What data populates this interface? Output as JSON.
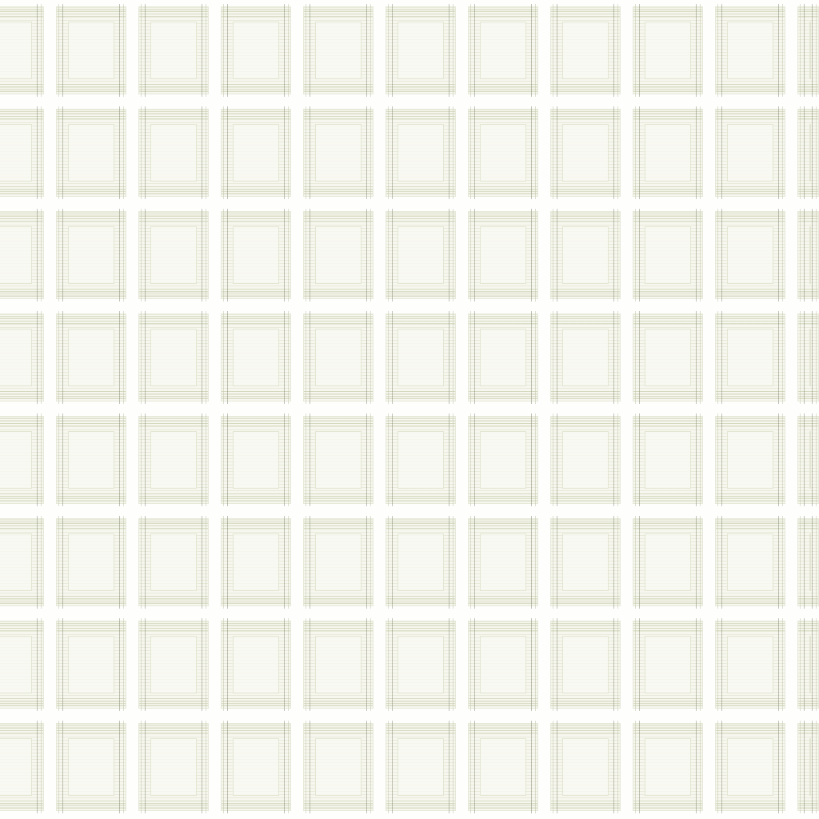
{
  "pattern": {
    "description_name": "woven-plaid-tile-pattern",
    "rows": 8,
    "columns": 11,
    "colors": {
      "background": "#ffffff",
      "tile_fill": "#f7f7ef",
      "tile_border": "#e6e8d8",
      "stripe": "#dce0c8",
      "thread_line": "#787d64"
    }
  }
}
